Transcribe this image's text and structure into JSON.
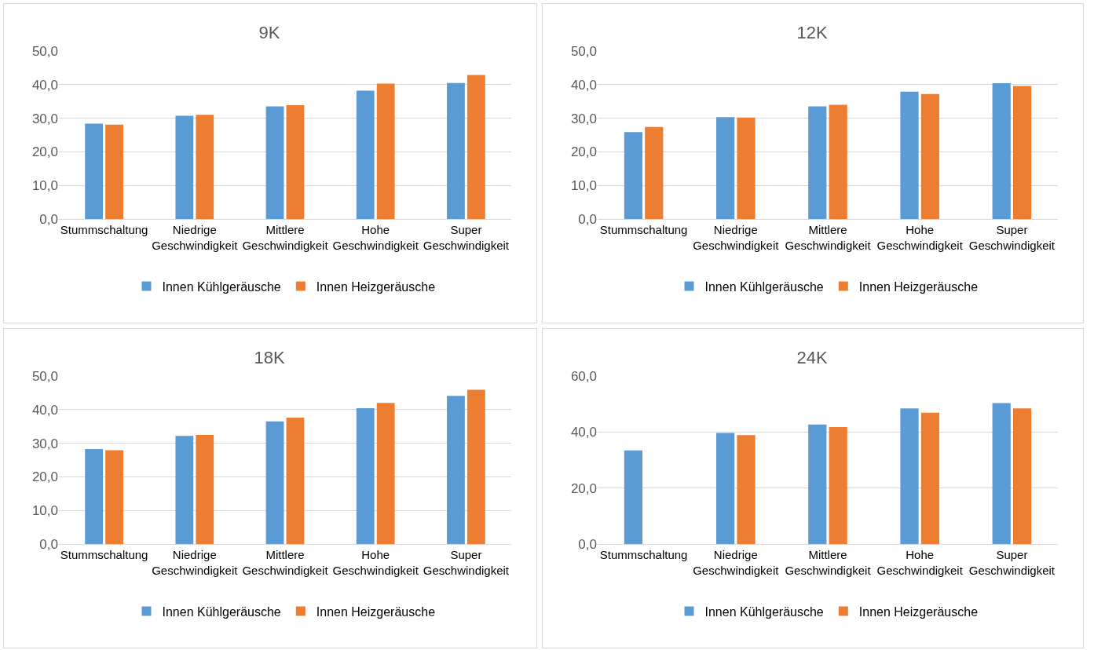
{
  "chart_data": [
    {
      "type": "bar",
      "title": "9K",
      "categories": [
        "Stummschaltung",
        "Niedrige Geschwindigkeit",
        "Mittlere Geschwindigkeit",
        "Hohe Geschwindigkeit",
        "Super Geschwindigkeit"
      ],
      "ylim": [
        0,
        50
      ],
      "yticks": [
        {
          "value": 0,
          "label": "0,0"
        },
        {
          "value": 10,
          "label": "10,0"
        },
        {
          "value": 20,
          "label": "20,0"
        },
        {
          "value": 30,
          "label": "30,0"
        },
        {
          "value": 40,
          "label": "40,0"
        },
        {
          "value": 50,
          "label": "50,0"
        }
      ],
      "grid": "y",
      "legend": "bottom",
      "series": [
        {
          "name": "Innen Kühlgeräusche",
          "color": "#5b9bd5",
          "values": [
            28.4,
            30.7,
            33.5,
            38.2,
            40.5
          ]
        },
        {
          "name": "Innen Heizgeräusche",
          "color": "#ed7d31",
          "values": [
            28.1,
            31.0,
            33.9,
            40.3,
            42.9
          ]
        }
      ]
    },
    {
      "type": "bar",
      "title": "12K",
      "categories": [
        "Stummschaltung",
        "Niedrige Geschwindigkeit",
        "Mittlere Geschwindigkeit",
        "Hohe Geschwindigkeit",
        "Super Geschwindigkeit"
      ],
      "ylim": [
        0,
        50
      ],
      "yticks": [
        {
          "value": 0,
          "label": "0,0"
        },
        {
          "value": 10,
          "label": "10,0"
        },
        {
          "value": 20,
          "label": "20,0"
        },
        {
          "value": 30,
          "label": "30,0"
        },
        {
          "value": 40,
          "label": "40,0"
        },
        {
          "value": 50,
          "label": "50,0"
        }
      ],
      "grid": "y",
      "legend": "bottom",
      "series": [
        {
          "name": "Innen Kühlgeräusche",
          "color": "#5b9bd5",
          "values": [
            25.9,
            30.3,
            33.5,
            37.9,
            40.4
          ]
        },
        {
          "name": "Innen Heizgeräusche",
          "color": "#ed7d31",
          "values": [
            27.4,
            30.2,
            34.0,
            37.2,
            39.6
          ]
        }
      ]
    },
    {
      "type": "bar",
      "title": "18K",
      "categories": [
        "Stummschaltung",
        "Niedrige Geschwindigkeit",
        "Mittlere Geschwindigkeit",
        "Hohe Geschwindigkeit",
        "Super Geschwindigkeit"
      ],
      "ylim": [
        0,
        50
      ],
      "yticks": [
        {
          "value": 0,
          "label": "0,0"
        },
        {
          "value": 10,
          "label": "10,0"
        },
        {
          "value": 20,
          "label": "20,0"
        },
        {
          "value": 30,
          "label": "30,0"
        },
        {
          "value": 40,
          "label": "40,0"
        },
        {
          "value": 50,
          "label": "50,0"
        }
      ],
      "grid": "y",
      "legend": "bottom",
      "series": [
        {
          "name": "Innen Kühlgeräusche",
          "color": "#5b9bd5",
          "values": [
            28.3,
            32.2,
            36.5,
            40.4,
            44.1
          ]
        },
        {
          "name": "Innen Heizgeräusche",
          "color": "#ed7d31",
          "values": [
            27.9,
            32.5,
            37.6,
            42.0,
            45.9
          ]
        }
      ]
    },
    {
      "type": "bar",
      "title": "24K",
      "categories": [
        "Stummschaltung",
        "Niedrige Geschwindigkeit",
        "Mittlere Geschwindigkeit",
        "Hohe Geschwindigkeit",
        "Super Geschwindigkeit"
      ],
      "ylim": [
        0,
        60
      ],
      "yticks": [
        {
          "value": 0,
          "label": "0,0"
        },
        {
          "value": 20,
          "label": "20,0"
        },
        {
          "value": 40,
          "label": "40,0"
        },
        {
          "value": 60,
          "label": "60,0"
        }
      ],
      "grid": "y",
      "legend": "bottom",
      "series": [
        {
          "name": "Innen Kühlgeräusche",
          "color": "#5b9bd5",
          "values": [
            33.4,
            39.7,
            42.7,
            48.4,
            50.3
          ]
        },
        {
          "name": "Innen Heizgeräusche",
          "color": "#ed7d31",
          "values": [
            null,
            38.9,
            41.8,
            46.9,
            48.4
          ]
        }
      ]
    }
  ]
}
